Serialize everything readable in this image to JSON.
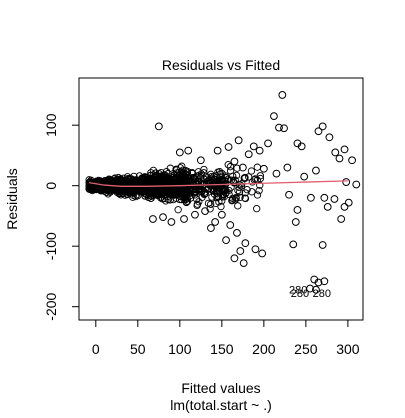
{
  "chart_data": {
    "type": "scatter",
    "title": "Residuals vs Fitted",
    "xlabel": "Fitted values",
    "subtitle": "lm(total.start ~ .)",
    "ylabel": "Residuals",
    "xlim": [
      -20,
      318
    ],
    "ylim": [
      -222,
      178
    ],
    "x_ticks": [
      0,
      50,
      100,
      150,
      200,
      250,
      300
    ],
    "y_ticks": [
      -200,
      -100,
      0,
      100
    ],
    "grid": false,
    "legend": "none",
    "point_color": "#000000",
    "smooth_color": "#e06070",
    "annotations": [
      {
        "text": "280",
        "x": 230,
        "y": -178
      },
      {
        "text": "280",
        "x": 232,
        "y": -184
      },
      {
        "text": "280",
        "x": 258,
        "y": -184
      }
    ],
    "smooth_line": [
      {
        "x": -8,
        "y": 5
      },
      {
        "x": 10,
        "y": 1
      },
      {
        "x": 30,
        "y": -1
      },
      {
        "x": 60,
        "y": -1
      },
      {
        "x": 100,
        "y": 0
      },
      {
        "x": 150,
        "y": 2
      },
      {
        "x": 200,
        "y": 4
      },
      {
        "x": 250,
        "y": 6
      },
      {
        "x": 300,
        "y": 8
      }
    ],
    "points": [
      {
        "x": 222,
        "y": 150
      },
      {
        "x": 75,
        "y": 98
      },
      {
        "x": 270,
        "y": 98
      },
      {
        "x": 265,
        "y": 90
      },
      {
        "x": 212,
        "y": 115
      },
      {
        "x": 218,
        "y": 96
      },
      {
        "x": 224,
        "y": 95
      },
      {
        "x": 240,
        "y": 70
      },
      {
        "x": 245,
        "y": 65
      },
      {
        "x": 278,
        "y": 80
      },
      {
        "x": 285,
        "y": 55
      },
      {
        "x": 290,
        "y": 45
      },
      {
        "x": 305,
        "y": 42
      },
      {
        "x": 296,
        "y": 60
      },
      {
        "x": 188,
        "y": 65
      },
      {
        "x": 195,
        "y": 58
      },
      {
        "x": 205,
        "y": 70
      },
      {
        "x": 170,
        "y": 75
      },
      {
        "x": 182,
        "y": 52
      },
      {
        "x": 158,
        "y": 64
      },
      {
        "x": 145,
        "y": 58
      },
      {
        "x": 110,
        "y": 58
      },
      {
        "x": 100,
        "y": 55
      },
      {
        "x": 125,
        "y": 42
      },
      {
        "x": 272,
        "y": -20
      },
      {
        "x": 276,
        "y": -35
      },
      {
        "x": 284,
        "y": -22
      },
      {
        "x": 296,
        "y": -35
      },
      {
        "x": 301,
        "y": -28
      },
      {
        "x": 292,
        "y": -55
      },
      {
        "x": 270,
        "y": -98
      },
      {
        "x": 235,
        "y": -97
      },
      {
        "x": 238,
        "y": -60
      },
      {
        "x": 240,
        "y": -40
      },
      {
        "x": 230,
        "y": -15
      },
      {
        "x": 248,
        "y": 15
      },
      {
        "x": 215,
        "y": 20
      },
      {
        "x": 228,
        "y": 30
      },
      {
        "x": 262,
        "y": 25
      },
      {
        "x": 310,
        "y": 2
      },
      {
        "x": 298,
        "y": 6
      },
      {
        "x": 256,
        "y": -20
      },
      {
        "x": 178,
        "y": -95
      },
      {
        "x": 172,
        "y": -108
      },
      {
        "x": 165,
        "y": -120
      },
      {
        "x": 176,
        "y": -128
      },
      {
        "x": 155,
        "y": -90
      },
      {
        "x": 190,
        "y": -105
      },
      {
        "x": 198,
        "y": -112
      },
      {
        "x": 168,
        "y": -78
      },
      {
        "x": 160,
        "y": -65
      },
      {
        "x": 142,
        "y": -60
      },
      {
        "x": 150,
        "y": -48
      },
      {
        "x": 137,
        "y": -70
      },
      {
        "x": 130,
        "y": -42
      },
      {
        "x": 118,
        "y": -48
      },
      {
        "x": 105,
        "y": -55
      },
      {
        "x": 90,
        "y": -60
      },
      {
        "x": 68,
        "y": -55
      },
      {
        "x": 80,
        "y": -52
      },
      {
        "x": 260,
        "y": -155
      },
      {
        "x": 265,
        "y": -160
      },
      {
        "x": 272,
        "y": -158
      },
      {
        "x": 255,
        "y": -170
      },
      {
        "x": 262,
        "y": -172
      },
      {
        "x": 175,
        "y": 30
      },
      {
        "x": 165,
        "y": 40
      },
      {
        "x": 200,
        "y": 28
      }
    ]
  }
}
